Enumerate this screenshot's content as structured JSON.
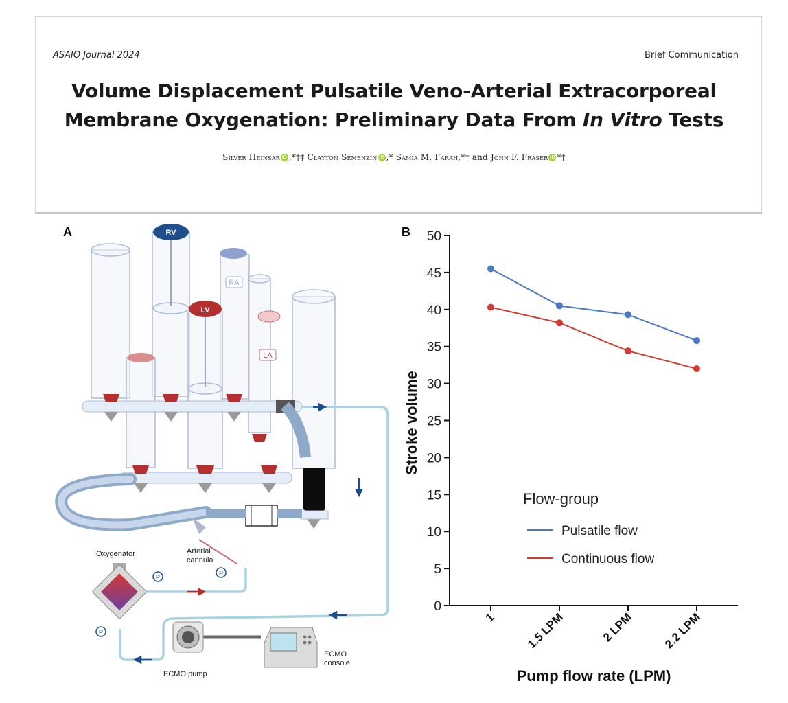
{
  "header": {
    "journal": "ASAIO Journal 2024",
    "section": "Brief Communication",
    "title_part1": "Volume Displacement Pulsatile Veno-Arterial Extracorporeal",
    "title_part2": "Membrane Oxygenation: Preliminary Data From ",
    "title_italic": "In Vitro",
    "title_part3": " Tests",
    "authors": [
      {
        "name": "Silver Heinsar",
        "affil": ",*†‡ "
      },
      {
        "name": "Clayton Semenzin",
        "affil": ",* "
      },
      {
        "name": "Samia M. Farah",
        "affil": ",*† and "
      },
      {
        "name": "John F. Fraser",
        "affil": "*†"
      }
    ],
    "orcid_label": "iD"
  },
  "panel_a": {
    "letter": "A",
    "labels": {
      "rv": "RV",
      "lv": "LV",
      "ra": "RA",
      "la": "LA",
      "pressure": "P",
      "oxygenator": "Oxygenator",
      "arterial_cannula_1": "Arterial",
      "arterial_cannula_2": "cannula",
      "ecmo_pump": "ECMO pump",
      "ecmo_console_1": "ECMO",
      "ecmo_console_2": "console"
    },
    "colors": {
      "tube": "#a9d3e2",
      "hose": "#8fa9c9",
      "rv_badge": "#1f4e8c",
      "lv_badge": "#b52f2f",
      "valve": "#b52f2f",
      "arrow": "#1f4e8c"
    }
  },
  "panel_b": {
    "letter": "B"
  },
  "chart_data": {
    "type": "line",
    "categories": [
      "1",
      "1.5 LPM",
      "2 LPM",
      "2.2 LPM"
    ],
    "xlabel": "Pump flow rate (LPM)",
    "ylabel": "Stroke volume",
    "ylim": [
      0,
      50
    ],
    "yticks": [
      0,
      5,
      10,
      15,
      20,
      25,
      30,
      35,
      40,
      45,
      50
    ],
    "grid": false,
    "legend": {
      "title": "Flow-group",
      "position": "bottom-center"
    },
    "series": [
      {
        "name": "Pulsatile flow",
        "color": "#4a78c2",
        "values": [
          45.5,
          40.5,
          39.3,
          35.8
        ]
      },
      {
        "name": "Continuous flow",
        "color": "#d23a32",
        "values": [
          40.3,
          38.2,
          34.4,
          32.0
        ]
      }
    ]
  }
}
